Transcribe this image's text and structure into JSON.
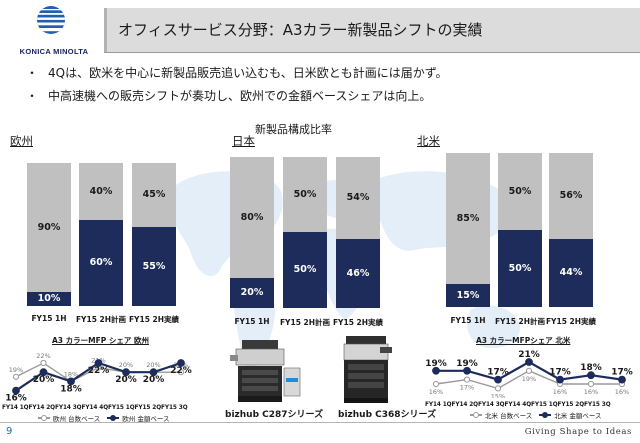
{
  "header": {
    "logo_text": "KONICA MINOLTA",
    "title": "オフィスサービス分野：A3カラー新製品シフトの実績"
  },
  "bullets": [
    {
      "dot": "・",
      "text": "4Qは、欧米を中心に新製品販売追い込むも、日米欧とも計画には届かず。"
    },
    {
      "dot": "・",
      "text": "中高速機への販売シフトが奏功し、欧州での金額ベースシェアは向上。"
    }
  ],
  "colors": {
    "navy": "#1d2c5b",
    "gray": "#c0c0c0",
    "accent_blue": "#1c6fb5"
  },
  "center_title": "新製品構成比率",
  "regions": [
    {
      "name": "欧州",
      "bars": [
        {
          "label": "FY15 1H",
          "top": "90%",
          "bottom": "10%",
          "bottom_value": 10
        },
        {
          "label": "FY15 2H計画",
          "top": "40%",
          "bottom": "60%",
          "bottom_value": 60
        },
        {
          "label": "FY15 2H実績",
          "top": "45%",
          "bottom": "55%",
          "bottom_value": 55
        }
      ],
      "mfp_title": "A3 カラーMFP シェア 欧州",
      "share": {
        "quarters": [
          "FY14 1Q",
          "FY14 2Q",
          "FY14 3Q",
          "FY14 4Q",
          "FY15 1Q",
          "FY15 2Q",
          "FY15 3Q"
        ],
        "quarters_text": "FY14 1QFY14 2QFY14 3QFY14 4QFY15 1QFY15 2QFY15 3Q",
        "amount": [
          16,
          20,
          18,
          22,
          20,
          20,
          22
        ],
        "amount_labels": [
          "16%",
          "20%",
          "18%",
          "22%",
          "20%",
          "20%",
          "22%"
        ],
        "unit": [
          19,
          22,
          18,
          21,
          20,
          20,
          20
        ],
        "unit_labels": [
          "19%",
          "22%",
          "18%",
          "21%",
          "20%",
          "20%",
          "20%"
        ]
      },
      "legend_unit": "欧州 台数ベース",
      "legend_amount": "欧州 金額ベース"
    },
    {
      "name": "日本",
      "bars": [
        {
          "label": "FY15 1H",
          "top": "80%",
          "bottom": "20%",
          "bottom_value": 20
        },
        {
          "label": "FY15 2H計画",
          "top": "50%",
          "bottom": "50%",
          "bottom_value": 50
        },
        {
          "label": "FY15 2H実績",
          "top": "54%",
          "bottom": "46%",
          "bottom_value": 46
        }
      ]
    },
    {
      "name": "北米",
      "bars": [
        {
          "label": "FY15 1H",
          "top": "85%",
          "bottom": "15%",
          "bottom_value": 15
        },
        {
          "label": "FY15 2H計画",
          "top": "50%",
          "bottom": "50%",
          "bottom_value": 50
        },
        {
          "label": "FY15 2H実績",
          "top": "56%",
          "bottom": "44%",
          "bottom_value": 44
        }
      ],
      "mfp_title": "A3 カラーMFPシェア 北米",
      "share": {
        "quarters": [
          "FY14 1Q",
          "FY14 2Q",
          "FY14 3Q",
          "FY14 4Q",
          "FY15 1Q",
          "FY15 2Q",
          "FY15 3Q"
        ],
        "quarters_text": "FY14 1QFY14 2QFY14 3QFY14 4QFY15 1QFY15 2QFY15 3Q",
        "amount": [
          19,
          19,
          17,
          21,
          17,
          18,
          17
        ],
        "amount_labels": [
          "19%",
          "19%",
          "17%",
          "21%",
          "17%",
          "18%",
          "17%"
        ],
        "unit": [
          16,
          17,
          15,
          19,
          16,
          16,
          16
        ],
        "unit_labels": [
          "16%",
          "17%",
          "15%",
          "19%",
          "16%",
          "16%",
          "16%"
        ]
      },
      "legend_unit": "北米 台数ベース",
      "legend_amount": "北米 金額ベース"
    }
  ],
  "products": [
    {
      "name": "bizhub C287シリーズ"
    },
    {
      "name": "bizhub C368シリーズ"
    }
  ],
  "footer": {
    "page": "9",
    "tagline": "Giving Shape to Ideas"
  }
}
